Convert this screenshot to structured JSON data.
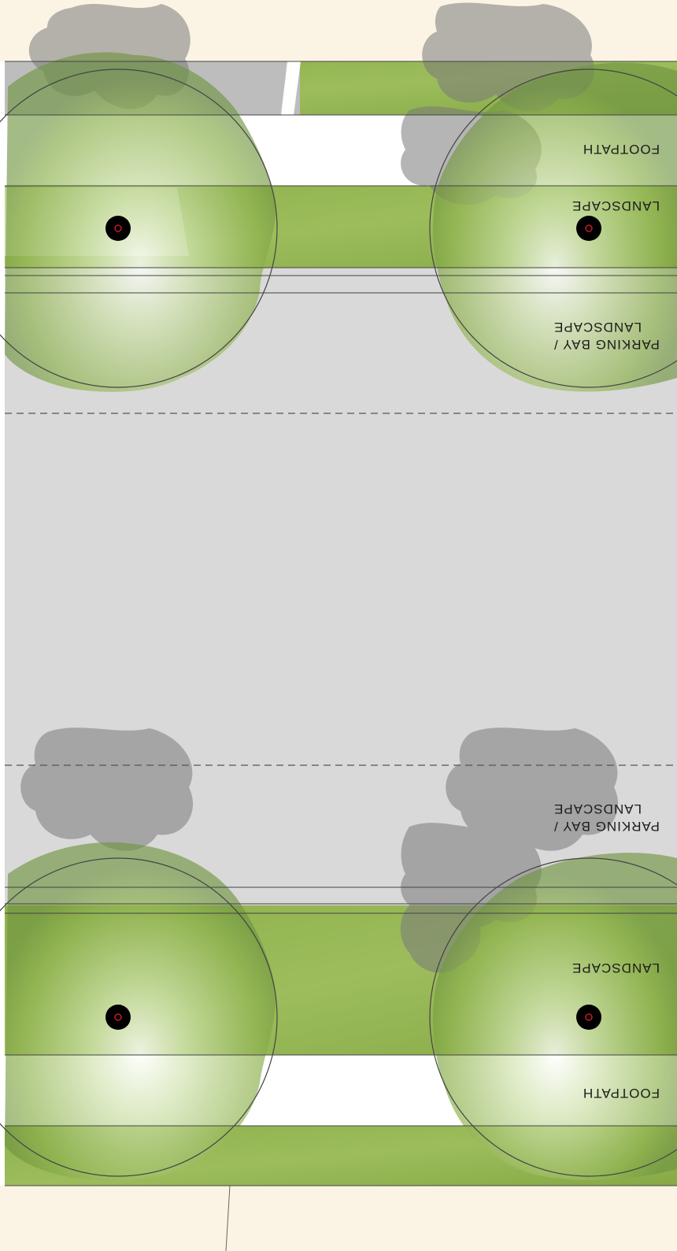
{
  "plan": {
    "labels": {
      "footpath_top": "FOOTPATH",
      "landscape_top": "LANDSCAPE",
      "parking_top": "PARKING BAY /\nLANDSCAPE",
      "parking_bottom": "PARKING BAY /\nLANDSCAPE",
      "landscape_bottom": "LANDSCAPE",
      "footpath_bottom": "FOOTPATH"
    },
    "colors": {
      "plot": "#fbf3e4",
      "grass": "#93b552",
      "road": "#d9d9d9",
      "footpath": "#ffffff",
      "canopy": "#a9c97a",
      "shadow": "#7a7a7a",
      "trunk": "#000000",
      "trunk_mark": "#e0202a",
      "line": "#444444"
    }
  }
}
